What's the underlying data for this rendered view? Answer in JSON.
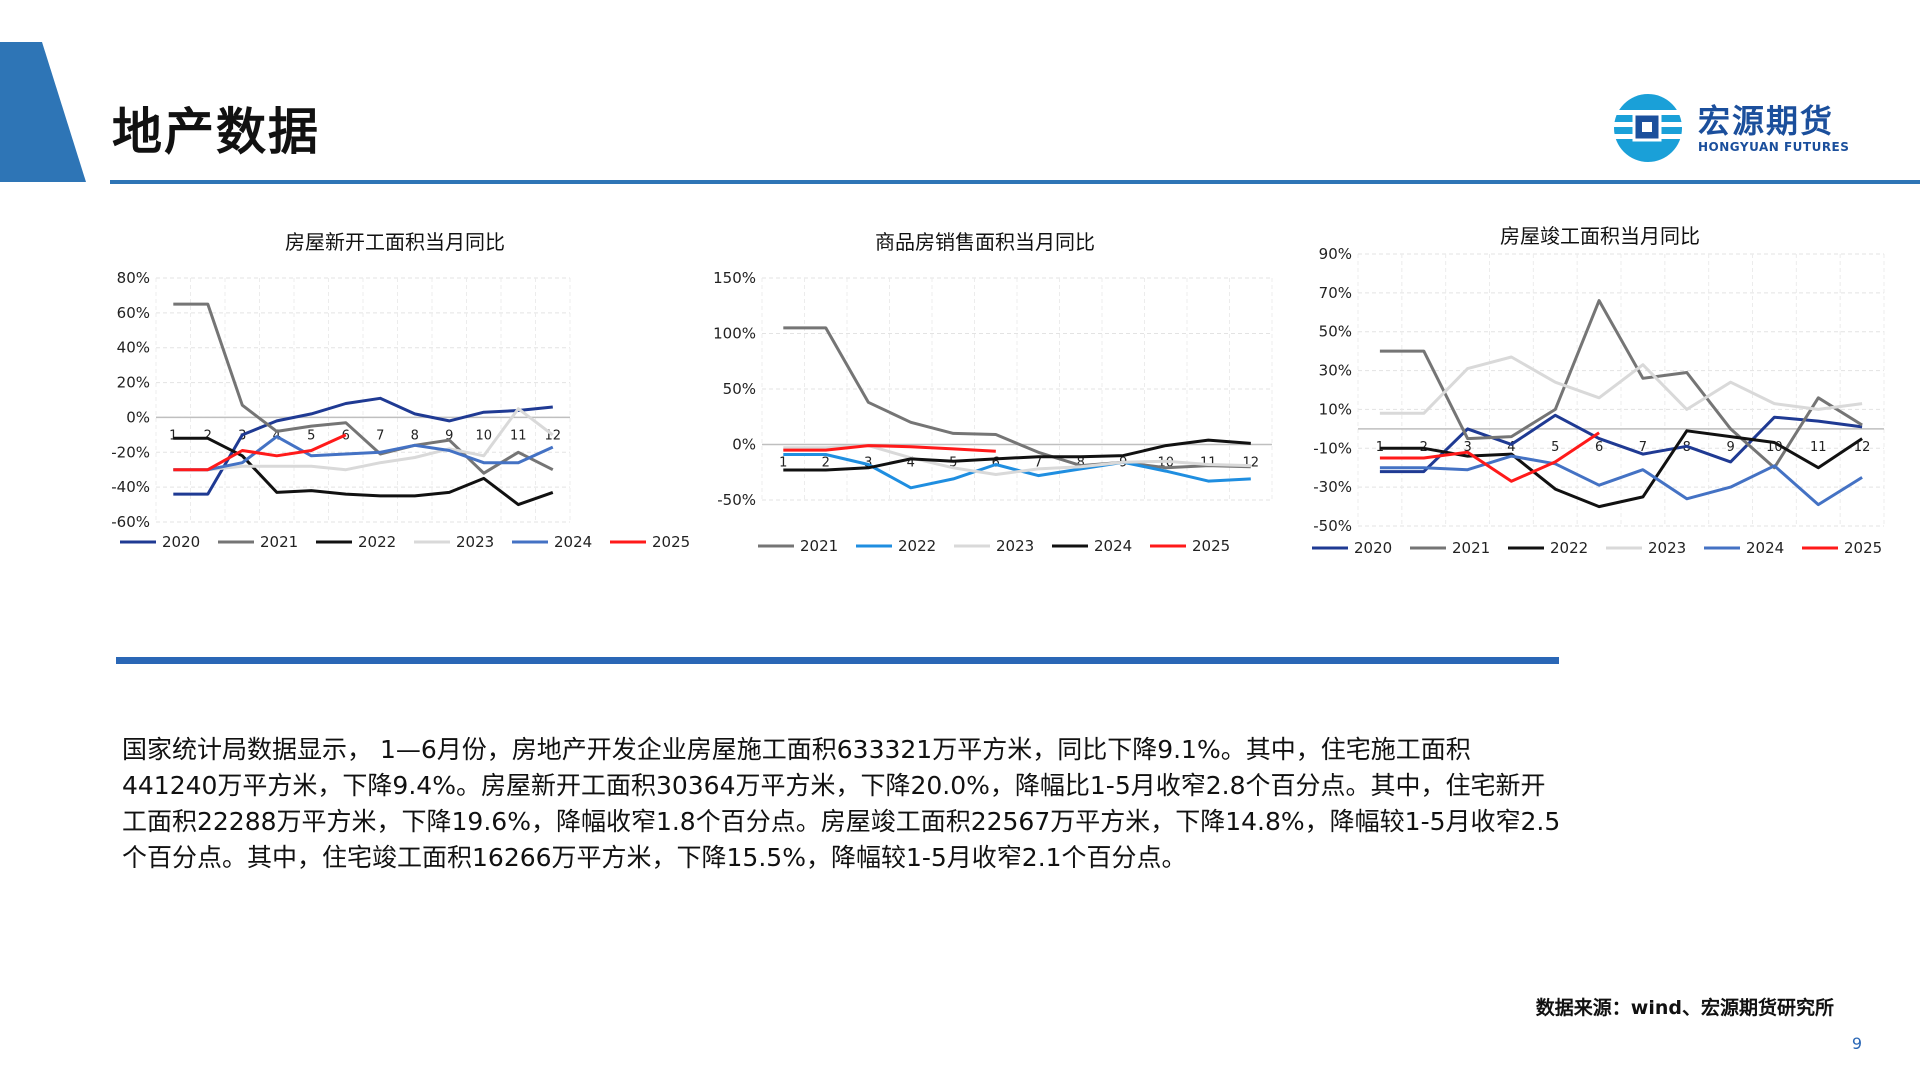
{
  "header": {
    "title": "地产数据",
    "logo_cn": "宏源期货",
    "logo_en": "HONGYUAN FUTURES"
  },
  "colors": {
    "accent": "#2e75b6",
    "s2020": "#1f3a93",
    "s2021": "#757575",
    "s2022": "#111111",
    "s2023": "#d9d9d9",
    "s2024": "#4472c4",
    "s2025": "#ff1a1a",
    "s2022_blue": "#1f8ee0"
  },
  "chart_data": [
    {
      "type": "line",
      "title": "房屋新开工面积当月同比",
      "x": [
        "1",
        "2",
        "3",
        "4",
        "5",
        "6",
        "7",
        "8",
        "9",
        "10",
        "11",
        "12"
      ],
      "ylim": [
        -60,
        80
      ],
      "yticks": [
        "80%",
        "60%",
        "40%",
        "20%",
        "0%",
        "-20%",
        "-40%",
        "-60%"
      ],
      "series": [
        {
          "name": "2020",
          "color": "#1f3a93",
          "values": [
            -44,
            -44,
            -10,
            -2,
            2,
            8,
            11,
            2,
            -2,
            3,
            4,
            6
          ]
        },
        {
          "name": "2021",
          "color": "#757575",
          "values": [
            65,
            65,
            7,
            -8,
            -5,
            -3,
            -21,
            -16,
            -13,
            -32,
            -20,
            -30
          ]
        },
        {
          "name": "2022",
          "color": "#111111",
          "values": [
            -12,
            -12,
            -22,
            -43,
            -42,
            -44,
            -45,
            -45,
            -43,
            -35,
            -50,
            -43
          ]
        },
        {
          "name": "2023",
          "color": "#d9d9d9",
          "values": [
            -30,
            -30,
            -28,
            -28,
            -28,
            -30,
            -26,
            -23,
            -18,
            -22,
            5,
            -10
          ]
        },
        {
          "name": "2024",
          "color": "#4472c4",
          "values": [
            -30,
            -30,
            -26,
            -11,
            -22,
            -21,
            -20,
            -16,
            -19,
            -26,
            -26,
            -17
          ]
        },
        {
          "name": "2025",
          "color": "#ff1a1a",
          "values": [
            -30,
            -30,
            -19,
            -22,
            -19,
            -10,
            null,
            null,
            null,
            null,
            null,
            null
          ]
        }
      ]
    },
    {
      "type": "line",
      "title": "商品房销售面积当月同比",
      "x": [
        "1",
        "2",
        "3",
        "4",
        "5",
        "6",
        "7",
        "8",
        "9",
        "10",
        "11",
        "12"
      ],
      "ylim": [
        -50,
        150
      ],
      "yticks": [
        "150%",
        "100%",
        "50%",
        "0%",
        "-50%"
      ],
      "series": [
        {
          "name": "2021",
          "color": "#757575",
          "values": [
            105,
            105,
            38,
            20,
            10,
            9,
            -7,
            -19,
            -16,
            -21,
            -19,
            -20
          ]
        },
        {
          "name": "2022",
          "color": "#1f8ee0",
          "values": [
            -9,
            -9,
            -18,
            -39,
            -31,
            -18,
            -28,
            -22,
            -16,
            -24,
            -33,
            -31
          ]
        },
        {
          "name": "2023",
          "color": "#d9d9d9",
          "values": [
            -3,
            -3,
            -1,
            -12,
            -21,
            -27,
            -22,
            -20,
            -16,
            -15,
            -18,
            -19
          ]
        },
        {
          "name": "2024",
          "color": "#111111",
          "values": [
            -23,
            -23,
            -21,
            -13,
            -15,
            -13,
            -11,
            -11,
            -10,
            -1,
            4,
            1
          ]
        },
        {
          "name": "2025",
          "color": "#ff1a1a",
          "values": [
            -5,
            -5,
            -1,
            -2,
            -4,
            -6,
            null,
            null,
            null,
            null,
            null,
            null
          ]
        }
      ]
    },
    {
      "type": "line",
      "title": "房屋竣工面积当月同比",
      "x": [
        "1",
        "2",
        "3",
        "4",
        "5",
        "6",
        "7",
        "8",
        "9",
        "10",
        "11",
        "12"
      ],
      "ylim": [
        -50,
        90
      ],
      "yticks": [
        "90%",
        "70%",
        "50%",
        "30%",
        "10%",
        "-10%",
        "-30%",
        "-50%"
      ],
      "series": [
        {
          "name": "2020",
          "color": "#1f3a93",
          "values": [
            -22,
            -22,
            0,
            -8,
            7,
            -5,
            -13,
            -9,
            -17,
            6,
            4,
            1
          ]
        },
        {
          "name": "2021",
          "color": "#757575",
          "values": [
            40,
            40,
            -5,
            -4,
            10,
            66,
            26,
            29,
            0,
            -20,
            16,
            2
          ]
        },
        {
          "name": "2022",
          "color": "#111111",
          "values": [
            -10,
            -10,
            -14,
            -13,
            -31,
            -40,
            -35,
            -1,
            -4,
            -7,
            -20,
            -5
          ]
        },
        {
          "name": "2023",
          "color": "#d9d9d9",
          "values": [
            8,
            8,
            31,
            37,
            24,
            16,
            33,
            10,
            24,
            13,
            10,
            13
          ]
        },
        {
          "name": "2024",
          "color": "#4472c4",
          "values": [
            -20,
            -20,
            -21,
            -14,
            -18,
            -29,
            -21,
            -36,
            -30,
            -19,
            -39,
            -25
          ]
        },
        {
          "name": "2025",
          "color": "#ff1a1a",
          "values": [
            -15,
            -15,
            -12,
            -27,
            -17,
            -2,
            null,
            null,
            null,
            null,
            null,
            null
          ]
        }
      ]
    }
  ],
  "body_text": "国家统计局数据显示， 1—6月份，房地产开发企业房屋施工面积633321万平方米，同比下降9.1%。其中，住宅施工面积441240万平方米，下降9.4%。房屋新开工面积30364万平方米，下降20.0%，降幅比1-5月收窄2.8个百分点。其中，住宅新开工面积22288万平方米，下降19.6%，降幅收窄1.8个百分点。房屋竣工面积22567万平方米，下降14.8%，降幅较1-5月收窄2.5个百分点。其中，住宅竣工面积16266万平方米，下降15.5%，降幅较1-5月收窄2.1个百分点。",
  "source": "数据来源：wind、宏源期货研究所",
  "page_number": "9"
}
